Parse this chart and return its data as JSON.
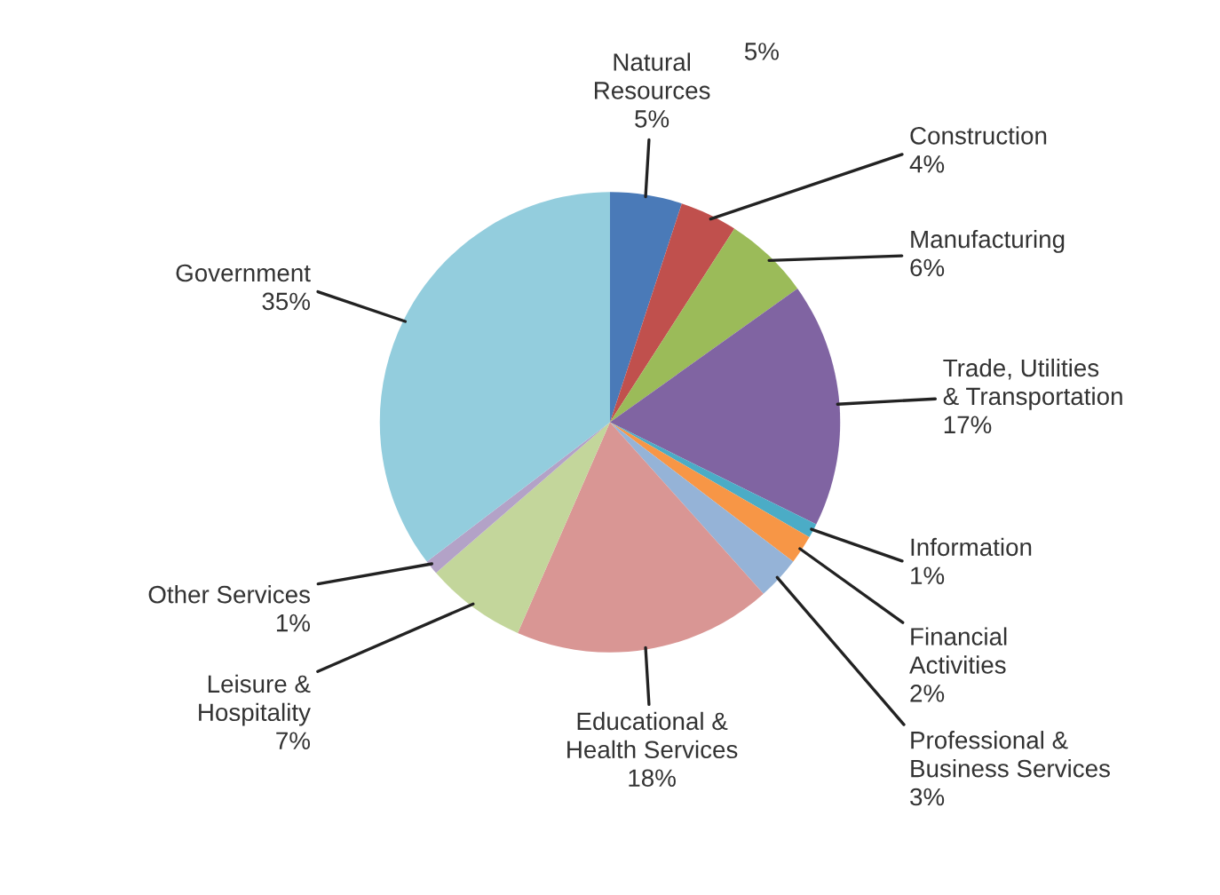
{
  "chart_data": {
    "type": "pie",
    "categories": [
      "Natural Resources",
      "Construction",
      "Manufacturing",
      "Trade, Utilities & Transportation",
      "Information",
      "Financial Activities",
      "Professional & Business Services",
      "Educational & Health Services",
      "Leisure & Hospitality",
      "Other Services",
      "Government"
    ],
    "values": [
      5,
      4,
      6,
      17,
      1,
      2,
      3,
      18,
      7,
      1,
      35
    ],
    "value_labels": [
      "5%",
      "4%",
      "6%",
      "17%",
      "1%",
      "2%",
      "3%",
      "18%",
      "7%",
      "1%",
      "35%"
    ],
    "colors": [
      "#4a7ab8",
      "#c0504d",
      "#9bbb59",
      "#8064a2",
      "#4bacc6",
      "#f79646",
      "#95b3d7",
      "#d99694",
      "#c3d69b",
      "#b3a2c7",
      "#93cddd"
    ],
    "annotations": [
      "5%"
    ]
  }
}
